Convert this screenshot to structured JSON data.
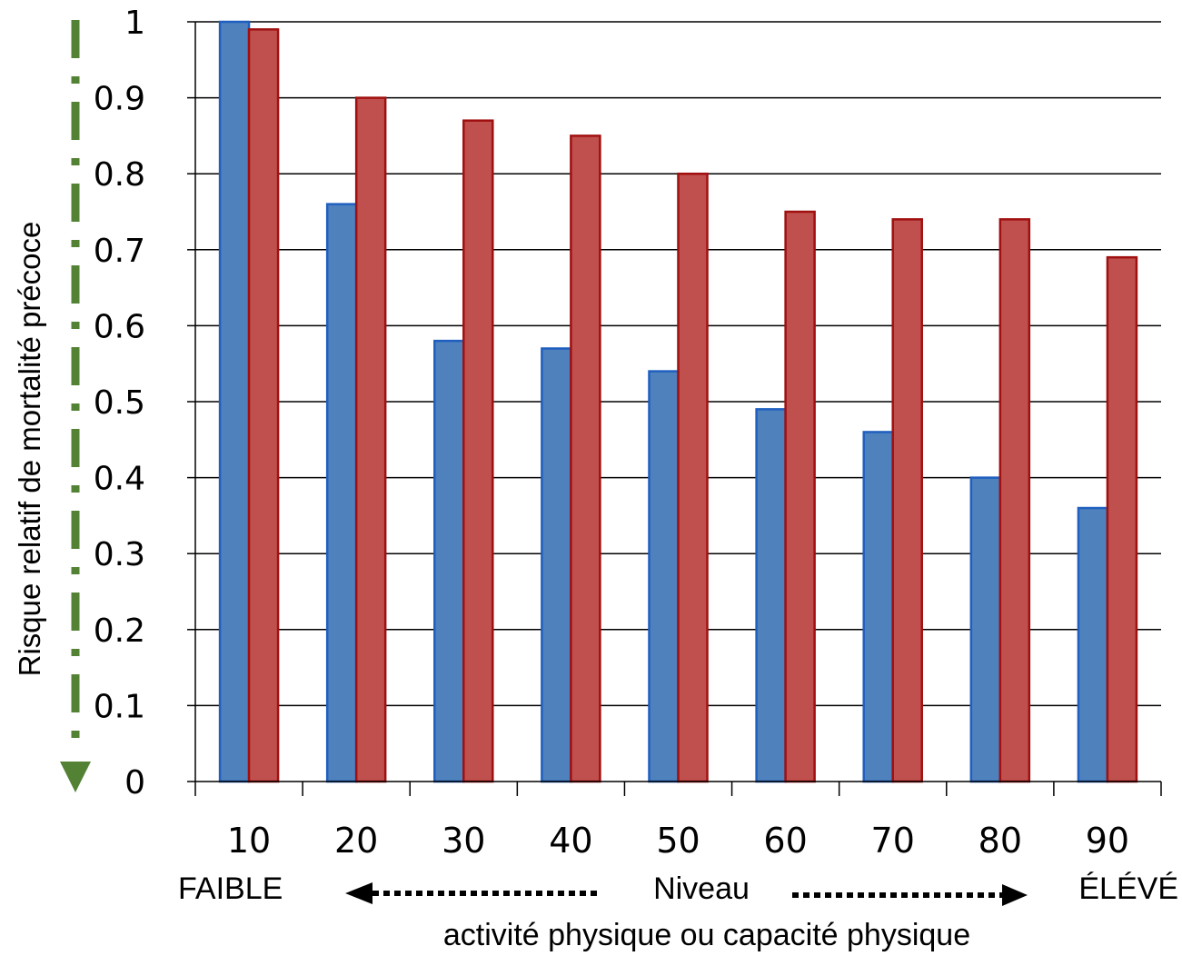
{
  "chart_data": {
    "type": "bar",
    "title": "",
    "xlabel": "activité physique ou capacité physique",
    "ylabel": "Risque relatif de mortalité précoce",
    "categories": [
      "10",
      "20",
      "30",
      "40",
      "50",
      "60",
      "70",
      "80",
      "90"
    ],
    "series": [
      {
        "color": "#4f81bd",
        "edge": "#1f5fbf",
        "values": [
          1.0,
          0.76,
          0.58,
          0.57,
          0.54,
          0.49,
          0.46,
          0.4,
          0.36
        ]
      },
      {
        "color": "#c0504d",
        "edge": "#a01010",
        "values": [
          0.99,
          0.9,
          0.87,
          0.85,
          0.8,
          0.75,
          0.74,
          0.74,
          0.69
        ]
      }
    ],
    "ylim": [
      0,
      1
    ],
    "yticks": [
      "0",
      "0.1",
      "0.2",
      "0.3",
      "0.4",
      "0.5",
      "0.6",
      "0.7",
      "0.8",
      "0.9",
      "1"
    ],
    "grid": true,
    "legend": "none",
    "annotations": {
      "low": "FAIBLE",
      "middle": "Niveau",
      "high": "ÉLÉVÉ"
    },
    "decor": {
      "arrow_color": "#548235"
    }
  }
}
